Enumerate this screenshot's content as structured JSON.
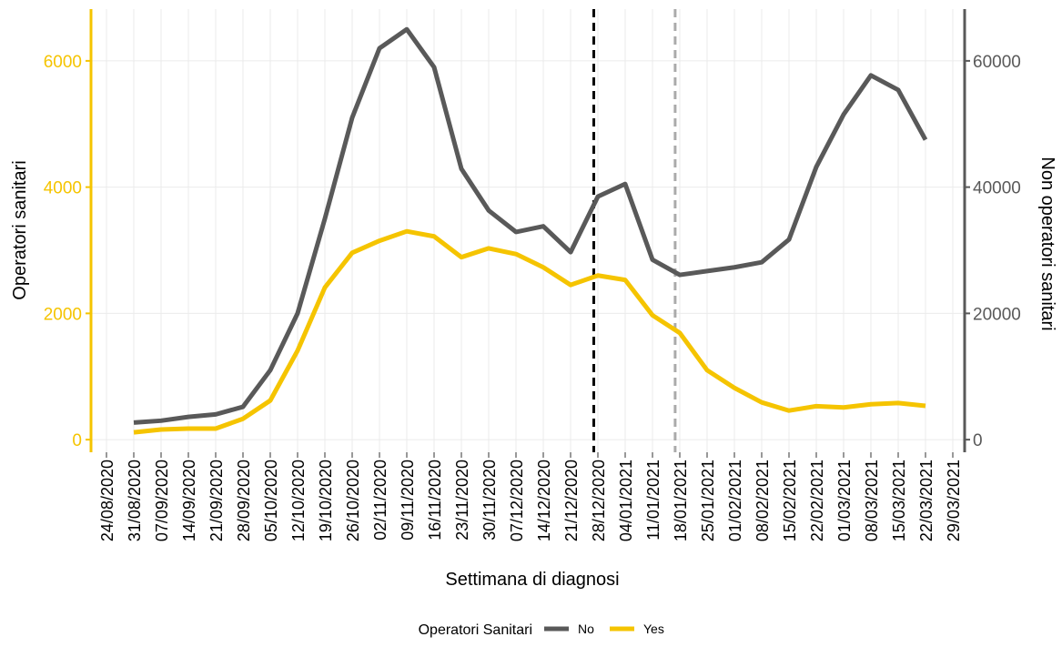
{
  "chart_data": {
    "type": "line",
    "x_label": "Settimana di diagnosi",
    "y_label": "Operatori sanitari",
    "y2_label": "Non operatori sanitari",
    "legend_title": "Operatori Sanitari",
    "legend_position": "bottom",
    "grid": true,
    "categories": [
      "24/08/2020",
      "31/08/2020",
      "07/09/2020",
      "14/09/2020",
      "21/09/2020",
      "28/09/2020",
      "05/10/2020",
      "12/10/2020",
      "19/10/2020",
      "26/10/2020",
      "02/11/2020",
      "09/11/2020",
      "16/11/2020",
      "23/11/2020",
      "30/11/2020",
      "07/12/2020",
      "14/12/2020",
      "21/12/2020",
      "28/12/2020",
      "04/01/2021",
      "11/01/2021",
      "18/01/2021",
      "25/01/2021",
      "01/02/2021",
      "08/02/2021",
      "15/02/2021",
      "22/02/2021",
      "01/03/2021",
      "08/03/2021",
      "15/03/2021",
      "22/03/2021",
      "29/03/2021"
    ],
    "ylim": [
      -200,
      6820
    ],
    "yticks": [
      0,
      2000,
      4000,
      6000
    ],
    "y_color": "#f5c400",
    "y2lim": [
      -2000,
      68200
    ],
    "y2ticks": [
      0,
      20000,
      40000,
      60000
    ],
    "y2_color": "#595959",
    "vlines": [
      {
        "x": 17.85,
        "color": "#000000"
      },
      {
        "x": 20.83,
        "color": "#aaaaaa"
      }
    ],
    "series": [
      {
        "name": "No",
        "color": "#595959",
        "axis": "y2",
        "values": [
          null,
          2700,
          3000,
          3600,
          4000,
          5200,
          11000,
          20000,
          35000,
          51000,
          62000,
          65000,
          59000,
          42900,
          36300,
          32900,
          33800,
          29700,
          38500,
          40500,
          28500,
          26100,
          26700,
          27300,
          28100,
          31700,
          43200,
          51500,
          57700,
          55400,
          47500,
          null
        ]
      },
      {
        "name": "Yes",
        "color": "#f5c400",
        "axis": "y",
        "values": [
          null,
          115,
          160,
          175,
          175,
          330,
          620,
          1410,
          2410,
          2960,
          3150,
          3300,
          3220,
          2890,
          3030,
          2940,
          2730,
          2450,
          2600,
          2530,
          1970,
          1690,
          1100,
          820,
          590,
          460,
          530,
          510,
          560,
          580,
          535,
          null
        ]
      }
    ]
  }
}
